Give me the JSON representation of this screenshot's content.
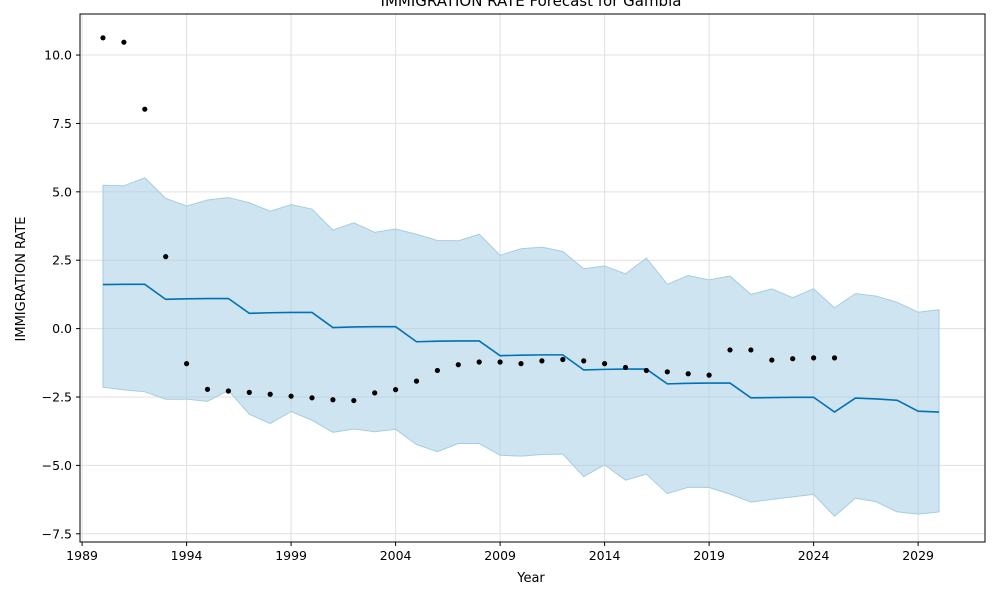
{
  "chart_data": {
    "type": "line",
    "title": "IMMIGRATION RATE Forecast for Gambia",
    "xlabel": "Year",
    "ylabel": "IMMIGRATION RATE",
    "xlim": [
      1988.9,
      2032.2
    ],
    "ylim": [
      -7.8,
      11.5
    ],
    "x_ticks": [
      1989,
      1994,
      1999,
      2004,
      2009,
      2014,
      2019,
      2024,
      2029
    ],
    "y_ticks": [
      -7.5,
      -5.0,
      -2.5,
      0.0,
      2.5,
      5.0,
      7.5,
      10.0
    ],
    "y_tick_labels": [
      "−7.5",
      "−5.0",
      "−2.5",
      "0.0",
      "2.5",
      "5.0",
      "7.5",
      "10.0"
    ],
    "grid": true,
    "colors": {
      "forecast": "#0072b2",
      "band": "#a6cde3",
      "observed": "#000000",
      "grid": "#e0e0e0"
    },
    "observed": {
      "x": [
        1990,
        1991,
        1992,
        1993,
        1994,
        1995,
        1996,
        1997,
        1998,
        1999,
        2000,
        2001,
        2002,
        2003,
        2004,
        2005,
        2006,
        2007,
        2008,
        2009,
        2010,
        2011,
        2012,
        2013,
        2014,
        2015,
        2016,
        2017,
        2018,
        2019,
        2020,
        2021,
        2022,
        2023,
        2024,
        2025
      ],
      "y": [
        10.63,
        10.47,
        8.02,
        2.63,
        -1.28,
        -2.22,
        -2.28,
        -2.33,
        -2.4,
        -2.47,
        -2.53,
        -2.6,
        -2.63,
        -2.35,
        -2.23,
        -1.92,
        -1.53,
        -1.32,
        -1.22,
        -1.22,
        -1.28,
        -1.18,
        -1.13,
        -1.18,
        -1.28,
        -1.42,
        -1.53,
        -1.58,
        -1.65,
        -1.7,
        -0.78,
        -0.78,
        -1.15,
        -1.1,
        -1.07,
        -1.07
      ]
    },
    "forecast": {
      "x": [
        1990,
        1991,
        1992,
        1993,
        1994,
        1995,
        1996,
        1997,
        1998,
        1999,
        2000,
        2001,
        2002,
        2003,
        2004,
        2005,
        2006,
        2007,
        2008,
        2009,
        2010,
        2011,
        2012,
        2013,
        2014,
        2015,
        2016,
        2017,
        2018,
        2019,
        2020,
        2021,
        2022,
        2023,
        2024,
        2025,
        2026,
        2027,
        2028,
        2029,
        2030
      ],
      "yhat": [
        1.61,
        1.62,
        1.62,
        1.07,
        1.09,
        1.1,
        1.1,
        0.56,
        0.58,
        0.59,
        0.59,
        0.04,
        0.06,
        0.07,
        0.07,
        -0.48,
        -0.46,
        -0.45,
        -0.45,
        -0.99,
        -0.97,
        -0.96,
        -0.96,
        -1.51,
        -1.49,
        -1.48,
        -1.48,
        -2.02,
        -2.0,
        -1.99,
        -1.99,
        -2.53,
        -2.52,
        -2.51,
        -2.51,
        -3.05,
        -2.54,
        -2.57,
        -2.62,
        -3.02,
        -3.05
      ],
      "upper": [
        5.24,
        5.22,
        5.51,
        4.76,
        4.48,
        4.7,
        4.79,
        4.6,
        4.29,
        4.53,
        4.37,
        3.6,
        3.87,
        3.52,
        3.64,
        3.45,
        3.22,
        3.21,
        3.45,
        2.68,
        2.92,
        2.98,
        2.82,
        2.19,
        2.29,
        2.0,
        2.58,
        1.62,
        1.94,
        1.78,
        1.92,
        1.25,
        1.45,
        1.13,
        1.46,
        0.76,
        1.28,
        1.19,
        0.96,
        0.6,
        0.69
      ],
      "lower": [
        -2.14,
        -2.24,
        -2.31,
        -2.58,
        -2.58,
        -2.66,
        -2.26,
        -3.13,
        -3.47,
        -3.03,
        -3.35,
        -3.79,
        -3.67,
        -3.77,
        -3.68,
        -4.24,
        -4.5,
        -4.2,
        -4.2,
        -4.63,
        -4.66,
        -4.6,
        -4.59,
        -5.41,
        -4.98,
        -5.54,
        -5.32,
        -6.03,
        -5.8,
        -5.81,
        -6.05,
        -6.34,
        -6.24,
        -6.15,
        -6.06,
        -6.86,
        -6.2,
        -6.33,
        -6.7,
        -6.78,
        -6.7
      ]
    }
  }
}
